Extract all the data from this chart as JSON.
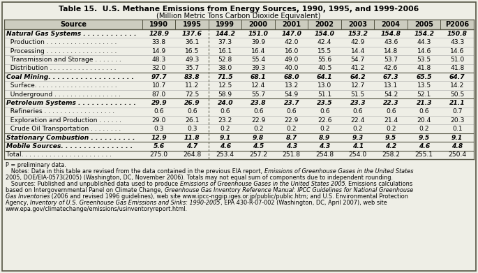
{
  "title1": "Table 15.  U.S. Methane Emissions from Energy Sources, 1990, 1995, and 1999-2006",
  "title2": "(Million Metric Tons Carbon Dioxide Equivalent)",
  "columns": [
    "Source",
    "1990",
    "1995",
    "1999",
    "2000",
    "2001",
    "2002",
    "2003",
    "2004",
    "2005",
    "P2006"
  ],
  "rows": [
    {
      "label": "Natural Gas Systems . . . . . . . . . . . .",
      "bold": true,
      "values": [
        "128.9",
        "137.6",
        "144.2",
        "151.0",
        "147.0",
        "154.0",
        "153.2",
        "154.8",
        "154.2",
        "150.8"
      ]
    },
    {
      "label": "  Production . . . . . . . . . . . . . . . . . .",
      "bold": false,
      "values": [
        "33.8",
        "36.1",
        "37.3",
        "39.9",
        "42.0",
        "42.4",
        "42.9",
        "43.6",
        "44.3",
        "43.3"
      ]
    },
    {
      "label": "  Processing . . . . . . . . . . . . . . . . . .",
      "bold": false,
      "values": [
        "14.9",
        "16.5",
        "16.1",
        "16.4",
        "16.0",
        "15.5",
        "14.4",
        "14.8",
        "14.6",
        "14.6"
      ]
    },
    {
      "label": "  Transmission and Storage . . . . . . .",
      "bold": false,
      "values": [
        "48.3",
        "49.3",
        "52.8",
        "55.4",
        "49.0",
        "55.6",
        "54.7",
        "53.7",
        "53.5",
        "51.0"
      ]
    },
    {
      "label": "  Distribution . . . . . . . . . . . . . . . . .",
      "bold": false,
      "values": [
        "32.0",
        "35.7",
        "38.0",
        "39.3",
        "40.0",
        "40.5",
        "41.2",
        "42.6",
        "41.8",
        "41.8"
      ]
    },
    {
      "label": "Coal Mining. . . . . . . . . . . . . . . . . . .",
      "bold": true,
      "values": [
        "97.7",
        "83.8",
        "71.5",
        "68.1",
        "68.0",
        "64.1",
        "64.2",
        "67.3",
        "65.5",
        "64.7"
      ]
    },
    {
      "label": "  Surface. . . . . . . . . . . . . . . . . . . . .",
      "bold": false,
      "values": [
        "10.7",
        "11.2",
        "12.5",
        "12.4",
        "13.2",
        "13.0",
        "12.7",
        "13.1",
        "13.5",
        "14.2"
      ]
    },
    {
      "label": "  Underground . . . . . . . . . . . . . . . . .",
      "bold": false,
      "values": [
        "87.0",
        "72.5",
        "58.9",
        "55.7",
        "54.9",
        "51.1",
        "51.5",
        "54.2",
        "52.1",
        "50.5"
      ]
    },
    {
      "label": "Petroleum Systems . . . . . . . . . . . . .",
      "bold": true,
      "values": [
        "29.9",
        "26.9",
        "24.0",
        "23.8",
        "23.7",
        "23.5",
        "23.3",
        "22.3",
        "21.3",
        "21.1"
      ]
    },
    {
      "label": "  Refineries . . . . . . . . . . . . . . . . . .",
      "bold": false,
      "values": [
        "0.6",
        "0.6",
        "0.6",
        "0.6",
        "0.6",
        "0.6",
        "0.6",
        "0.6",
        "0.6",
        "0.7"
      ]
    },
    {
      "label": "  Exploration and Production . . . . . .",
      "bold": false,
      "values": [
        "29.0",
        "26.1",
        "23.2",
        "22.9",
        "22.9",
        "22.6",
        "22.4",
        "21.4",
        "20.4",
        "20.3"
      ]
    },
    {
      "label": "  Crude Oil Transportation . . . . . . . .",
      "bold": false,
      "values": [
        "0.3",
        "0.3",
        "0.2",
        "0.2",
        "0.2",
        "0.2",
        "0.2",
        "0.2",
        "0.2",
        "0.1"
      ]
    },
    {
      "label": "Stationary Combustion . . . . . . . . . .",
      "bold": true,
      "values": [
        "12.9",
        "11.8",
        "9.1",
        "9.8",
        "8.7",
        "8.9",
        "9.3",
        "9.5",
        "9.5",
        "9.1"
      ]
    },
    {
      "label": "Mobile Sources. . . . . . . . . . . . . . . .",
      "bold": true,
      "values": [
        "5.6",
        "4.7",
        "4.6",
        "4.5",
        "4.3",
        "4.3",
        "4.1",
        "4.2",
        "4.6",
        "4.8"
      ]
    },
    {
      "label": "Total. . . . . . . . . . . . . . . . . . . . . . .",
      "bold": false,
      "values": [
        "275.0",
        "264.8",
        "253.4",
        "257.2",
        "251.8",
        "254.8",
        "254.0",
        "258.2",
        "255.1",
        "250.4"
      ]
    }
  ],
  "footer_lines": [
    [
      [
        "P = preliminary data.",
        false
      ]
    ],
    [
      [
        "   Notes: Data in this table are revised from the data contained in the previous EIA report, ",
        false
      ],
      [
        "Emissions of Greenhouse Gases in the United States",
        true
      ]
    ],
    [
      [
        "2005, DOE/EIA-0573(2005) (Washington, DC, November 2006). Totals may not equal sum of components due to independent rounding.",
        false
      ]
    ],
    [
      [
        "   Sources: Published and unpublished data used to produce ",
        false
      ],
      [
        "Emissions of Greenhouse Gases in the United States 2005",
        true
      ],
      [
        ". Emissions calculations",
        false
      ]
    ],
    [
      [
        "based on Intergovernmental Panel on Climate Change, ",
        false
      ],
      [
        "Greenhouse Gas Inventory Reference Manual: IPCC Guidelines for National Greenhouse",
        true
      ]
    ],
    [
      [
        "Gas Inventories",
        true
      ],
      [
        " (2006 and revised 1996 guidelines), web site www.ipcc-nggip.iges.or.jp/public/public.htm; and U.S. Environmental Protection",
        false
      ]
    ],
    [
      [
        "Agency, ",
        false
      ],
      [
        "Inventory of U.S. Greenhouse Gas Emissions and Sinks: 1990-2005",
        true
      ],
      [
        ", EPA 430-R-07-002 (Washington, DC, April 2007), web site",
        false
      ]
    ],
    [
      [
        "www.epa.gov/climatechange/emissions/usinventoryreport.html.",
        false
      ]
    ]
  ],
  "bg_color": "#eeeee6",
  "header_bg": "#ccccbf",
  "border_color": "#555544",
  "line_color_bold": "#555544",
  "line_color_light": "#aaaaaa"
}
